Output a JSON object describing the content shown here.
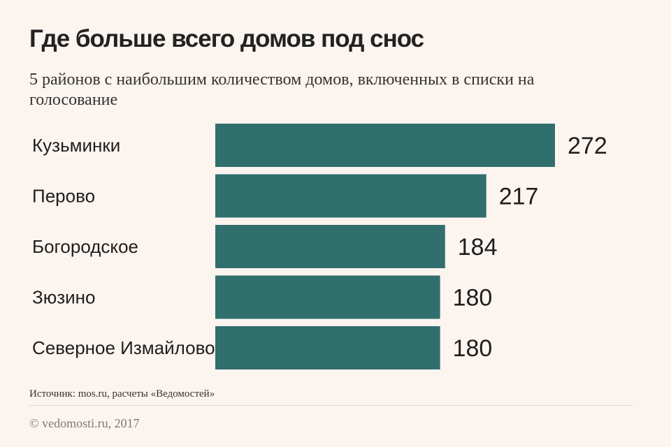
{
  "chart_data": {
    "type": "bar",
    "orientation": "horizontal",
    "title": "Где больше всего домов под снос",
    "subtitle": "5 районов с наибольшим количеством домов, включенных в списки на голосование",
    "categories": [
      "Кузьминки",
      "Перово",
      "Богородское",
      "Зюзино",
      "Северное Измайлово"
    ],
    "values": [
      272,
      217,
      184,
      180,
      180
    ],
    "data_labels": [
      "272",
      "217",
      "184",
      "180",
      "180"
    ],
    "xlim": [
      0,
      272
    ],
    "grid": false,
    "legend": "none",
    "bar_color": "#316e6e"
  },
  "footer": {
    "source": "Источник: mos.ru, расчеты «Ведомостей»",
    "copyright": "© vedomosti.ru, 2017"
  },
  "colors": {
    "background": "#fcf4ef",
    "text": "#1e1e1e"
  }
}
